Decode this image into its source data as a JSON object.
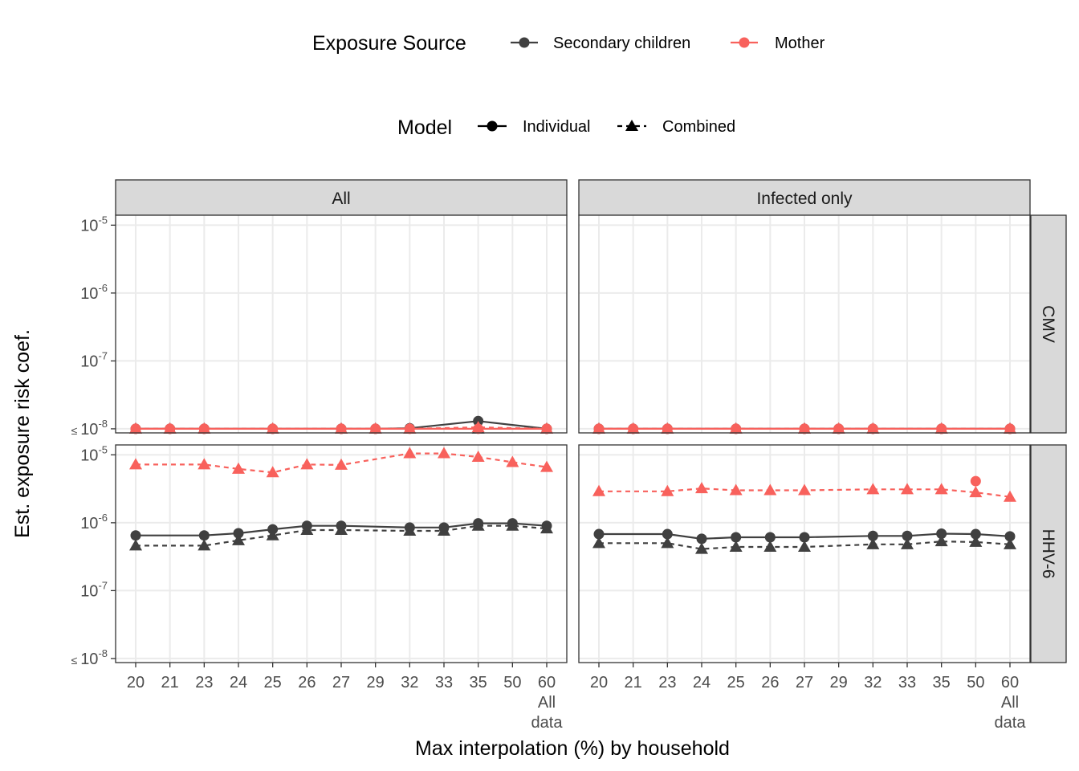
{
  "chart_data": {
    "type": "line",
    "facet_columns": [
      "All",
      "Infected only"
    ],
    "facet_rows": [
      "CMV",
      "HHV-6"
    ],
    "xlabel": "Max interpolation (%) by household",
    "ylabel": "Est. exposure risk coef.",
    "x_categories": [
      "20",
      "21",
      "23",
      "24",
      "25",
      "26",
      "27",
      "29",
      "32",
      "33",
      "35",
      "50",
      "60"
    ],
    "x_extra_label": "All\ndata",
    "y_scale": "log10",
    "y_range": [
      1e-08,
      1.4e-05
    ],
    "y_ticks": [
      {
        "value": 1e-05,
        "label": "10",
        "exp": "-5",
        "prefix": ""
      },
      {
        "value": 1e-06,
        "label": "10",
        "exp": "-6",
        "prefix": ""
      },
      {
        "value": 1e-07,
        "label": "10",
        "exp": "-7",
        "prefix": ""
      },
      {
        "value": 1e-08,
        "label": "10",
        "exp": "-8",
        "prefix": "≤ "
      }
    ],
    "legend": {
      "exposure": {
        "title": "Exposure Source",
        "items": [
          {
            "label": "Secondary children",
            "color": "#404040"
          },
          {
            "label": "Mother",
            "color": "#f8615c"
          }
        ]
      },
      "model": {
        "title": "Model",
        "items": [
          {
            "label": "Individual",
            "shape": "circle",
            "linetype": "solid"
          },
          {
            "label": "Combined",
            "shape": "triangle",
            "linetype": "dashed"
          }
        ]
      }
    },
    "colors": {
      "Secondary children": "#404040",
      "Mother": "#f8615c"
    },
    "panels": [
      {
        "column": "All",
        "row": "CMV",
        "series": [
          {
            "source": "Mother",
            "model": "Combined",
            "x": [
              "20",
              "21",
              "23",
              "25",
              "27",
              "29",
              "32",
              "35",
              "60"
            ],
            "y": [
              1e-08,
              1e-08,
              1e-08,
              1e-08,
              1e-08,
              1e-08,
              1e-08,
              1.05e-08,
              1e-08
            ]
          },
          {
            "source": "Mother",
            "model": "Individual",
            "x": [
              "20",
              "21",
              "23",
              "25",
              "27",
              "29",
              "32",
              "35",
              "60"
            ],
            "y": [
              1e-08,
              1e-08,
              1e-08,
              1e-08,
              1e-08,
              1e-08,
              1e-08,
              1e-08,
              1e-08
            ]
          },
          {
            "source": "Secondary children",
            "model": "Combined",
            "x": [
              "20",
              "21",
              "23",
              "25",
              "27",
              "29",
              "32",
              "35",
              "60"
            ],
            "y": [
              1e-08,
              1e-08,
              1e-08,
              1e-08,
              1e-08,
              1e-08,
              1e-08,
              1e-08,
              1e-08
            ]
          },
          {
            "source": "Secondary children",
            "model": "Individual",
            "x": [
              "20",
              "21",
              "23",
              "25",
              "27",
              "29",
              "32",
              "35",
              "60"
            ],
            "y": [
              1e-08,
              1e-08,
              1e-08,
              1e-08,
              1e-08,
              1e-08,
              1.02e-08,
              1.3e-08,
              1e-08
            ]
          }
        ]
      },
      {
        "column": "Infected only",
        "row": "CMV",
        "series": [
          {
            "source": "Mother",
            "model": "Combined",
            "x": [
              "20",
              "21",
              "23",
              "25",
              "27",
              "29",
              "32",
              "35",
              "60"
            ],
            "y": [
              1e-08,
              1e-08,
              1e-08,
              1e-08,
              1e-08,
              1e-08,
              1e-08,
              1e-08,
              1e-08
            ]
          },
          {
            "source": "Mother",
            "model": "Individual",
            "x": [
              "20",
              "21",
              "23",
              "25",
              "27",
              "29",
              "32",
              "35",
              "60"
            ],
            "y": [
              1e-08,
              1e-08,
              1e-08,
              1e-08,
              1e-08,
              1e-08,
              1e-08,
              1e-08,
              1e-08
            ]
          },
          {
            "source": "Secondary children",
            "model": "Combined",
            "x": [
              "20",
              "21",
              "23",
              "25",
              "27",
              "29",
              "32",
              "35",
              "60"
            ],
            "y": [
              1e-08,
              1e-08,
              1e-08,
              1e-08,
              1e-08,
              1e-08,
              1e-08,
              1e-08,
              1e-08
            ]
          },
          {
            "source": "Secondary children",
            "model": "Individual",
            "x": [
              "20",
              "21",
              "23",
              "25",
              "27",
              "29",
              "32",
              "35",
              "60"
            ],
            "y": [
              1e-08,
              1e-08,
              1e-08,
              1e-08,
              1e-08,
              1e-08,
              1e-08,
              1e-08,
              1e-08
            ]
          }
        ]
      },
      {
        "column": "All",
        "row": "HHV-6",
        "series": [
          {
            "source": "Mother",
            "model": "Combined",
            "x": [
              "20",
              "23",
              "24",
              "25",
              "26",
              "27",
              "32",
              "33",
              "35",
              "50",
              "60"
            ],
            "y": [
              7.2e-06,
              7.2e-06,
              6.2e-06,
              5.5e-06,
              7.2e-06,
              7.1e-06,
              1.05e-05,
              1.05e-05,
              9.3e-06,
              7.8e-06,
              6.6e-06
            ]
          },
          {
            "source": "Secondary children",
            "model": "Individual",
            "x": [
              "20",
              "23",
              "24",
              "25",
              "26",
              "27",
              "32",
              "33",
              "35",
              "50",
              "60"
            ],
            "y": [
              6.5e-07,
              6.5e-07,
              7e-07,
              8e-07,
              9e-07,
              9e-07,
              8.5e-07,
              8.5e-07,
              9.8e-07,
              9.8e-07,
              9e-07
            ]
          },
          {
            "source": "Secondary children",
            "model": "Combined",
            "x": [
              "20",
              "23",
              "24",
              "25",
              "26",
              "27",
              "32",
              "33",
              "35",
              "50",
              "60"
            ],
            "y": [
              4.6e-07,
              4.6e-07,
              5.5e-07,
              6.5e-07,
              7.8e-07,
              7.8e-07,
              7.6e-07,
              7.6e-07,
              9e-07,
              9e-07,
              8.2e-07
            ]
          }
        ]
      },
      {
        "column": "Infected only",
        "row": "HHV-6",
        "series": [
          {
            "source": "Mother",
            "model": "Combined",
            "x": [
              "20",
              "23",
              "24",
              "25",
              "26",
              "27",
              "32",
              "33",
              "35",
              "50",
              "60"
            ],
            "y": [
              2.9e-06,
              2.9e-06,
              3.2e-06,
              3e-06,
              3e-06,
              3e-06,
              3.1e-06,
              3.1e-06,
              3.1e-06,
              2.8e-06,
              2.4e-06
            ]
          },
          {
            "source": "Mother",
            "model": "Individual",
            "x": [
              "50"
            ],
            "y": [
              4.1e-06
            ]
          },
          {
            "source": "Secondary children",
            "model": "Individual",
            "x": [
              "20",
              "23",
              "24",
              "25",
              "26",
              "27",
              "32",
              "33",
              "35",
              "50",
              "60"
            ],
            "y": [
              6.8e-07,
              6.8e-07,
              5.8e-07,
              6.1e-07,
              6.1e-07,
              6.1e-07,
              6.4e-07,
              6.4e-07,
              6.9e-07,
              6.8e-07,
              6.3e-07
            ]
          },
          {
            "source": "Secondary children",
            "model": "Combined",
            "x": [
              "20",
              "23",
              "24",
              "25",
              "26",
              "27",
              "32",
              "33",
              "35",
              "50",
              "60"
            ],
            "y": [
              5e-07,
              5e-07,
              4.1e-07,
              4.4e-07,
              4.4e-07,
              4.4e-07,
              4.8e-07,
              4.8e-07,
              5.3e-07,
              5.2e-07,
              4.8e-07
            ]
          }
        ]
      }
    ]
  }
}
